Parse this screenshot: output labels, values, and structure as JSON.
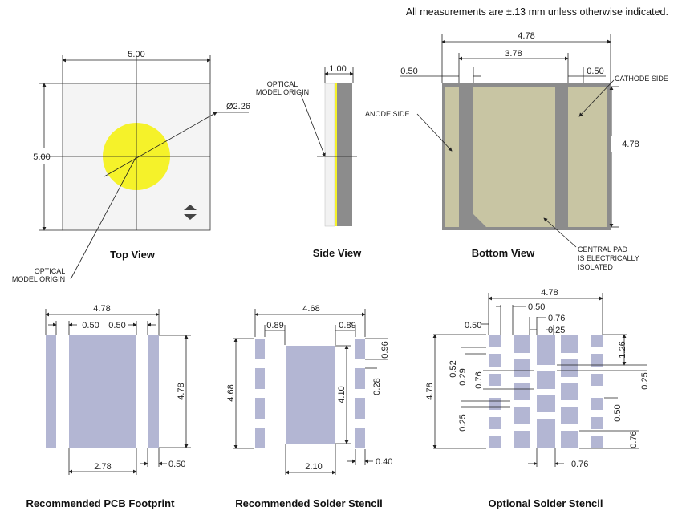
{
  "note": "All measurements are ±.13 mm unless otherwise indicated.",
  "colors": {
    "emitter": "#f5f22a",
    "pad_metal": "#c8c5a3",
    "body_gray": "#8c8c8c",
    "stencil": "#b3b6d3"
  },
  "top_view": {
    "title": "Top View",
    "width": "5.00",
    "height": "5.00",
    "diameter": "Ø2.26",
    "origin_label": [
      "OPTICAL",
      "MODEL ORIGIN"
    ],
    "icon": "polarity-mark-icon"
  },
  "side_view": {
    "title": "Side View",
    "thickness": "1.00",
    "origin_label": [
      "OPTICAL",
      "MODEL ORIGIN"
    ]
  },
  "bottom_view": {
    "title": "Bottom View",
    "width": "4.78",
    "inner": "3.78",
    "left_gap": "0.50",
    "right_gap": "0.50",
    "height": "4.78",
    "anode": "ANODE SIDE",
    "cathode": "CATHODE SIDE",
    "central": [
      "CENTRAL PAD",
      "IS ELECTRICALLY",
      "ISOLATED"
    ]
  },
  "pcb": {
    "title": "Recommended PCB Footprint",
    "width": "4.78",
    "pad_a": "0.50",
    "pad_b": "0.50",
    "height": "4.78",
    "center": "2.78",
    "gap": "0.50"
  },
  "stencil": {
    "title": "Recommended Solder Stencil",
    "width": "4.68",
    "left_gap": "0.89",
    "right_gap": "0.89",
    "height": "4.68",
    "center_h": "4.10",
    "pad_h": "0.96",
    "pad_gap": "0.28",
    "center_w": "2.10",
    "pad_w": "0.40"
  },
  "optional": {
    "title": "Optional Solder Stencil",
    "width": "4.78",
    "d1": "0.50",
    "d2": "0.76",
    "d3": "0.25",
    "left_w": "0.50",
    "r1": "1.26",
    "l1": "0.52",
    "l2": "0.29",
    "l3": "0.76",
    "r2": "0.25",
    "height": "4.78",
    "l4": "0.25",
    "r3": "0.50",
    "r4": "0.76",
    "bottom": "0.76"
  }
}
